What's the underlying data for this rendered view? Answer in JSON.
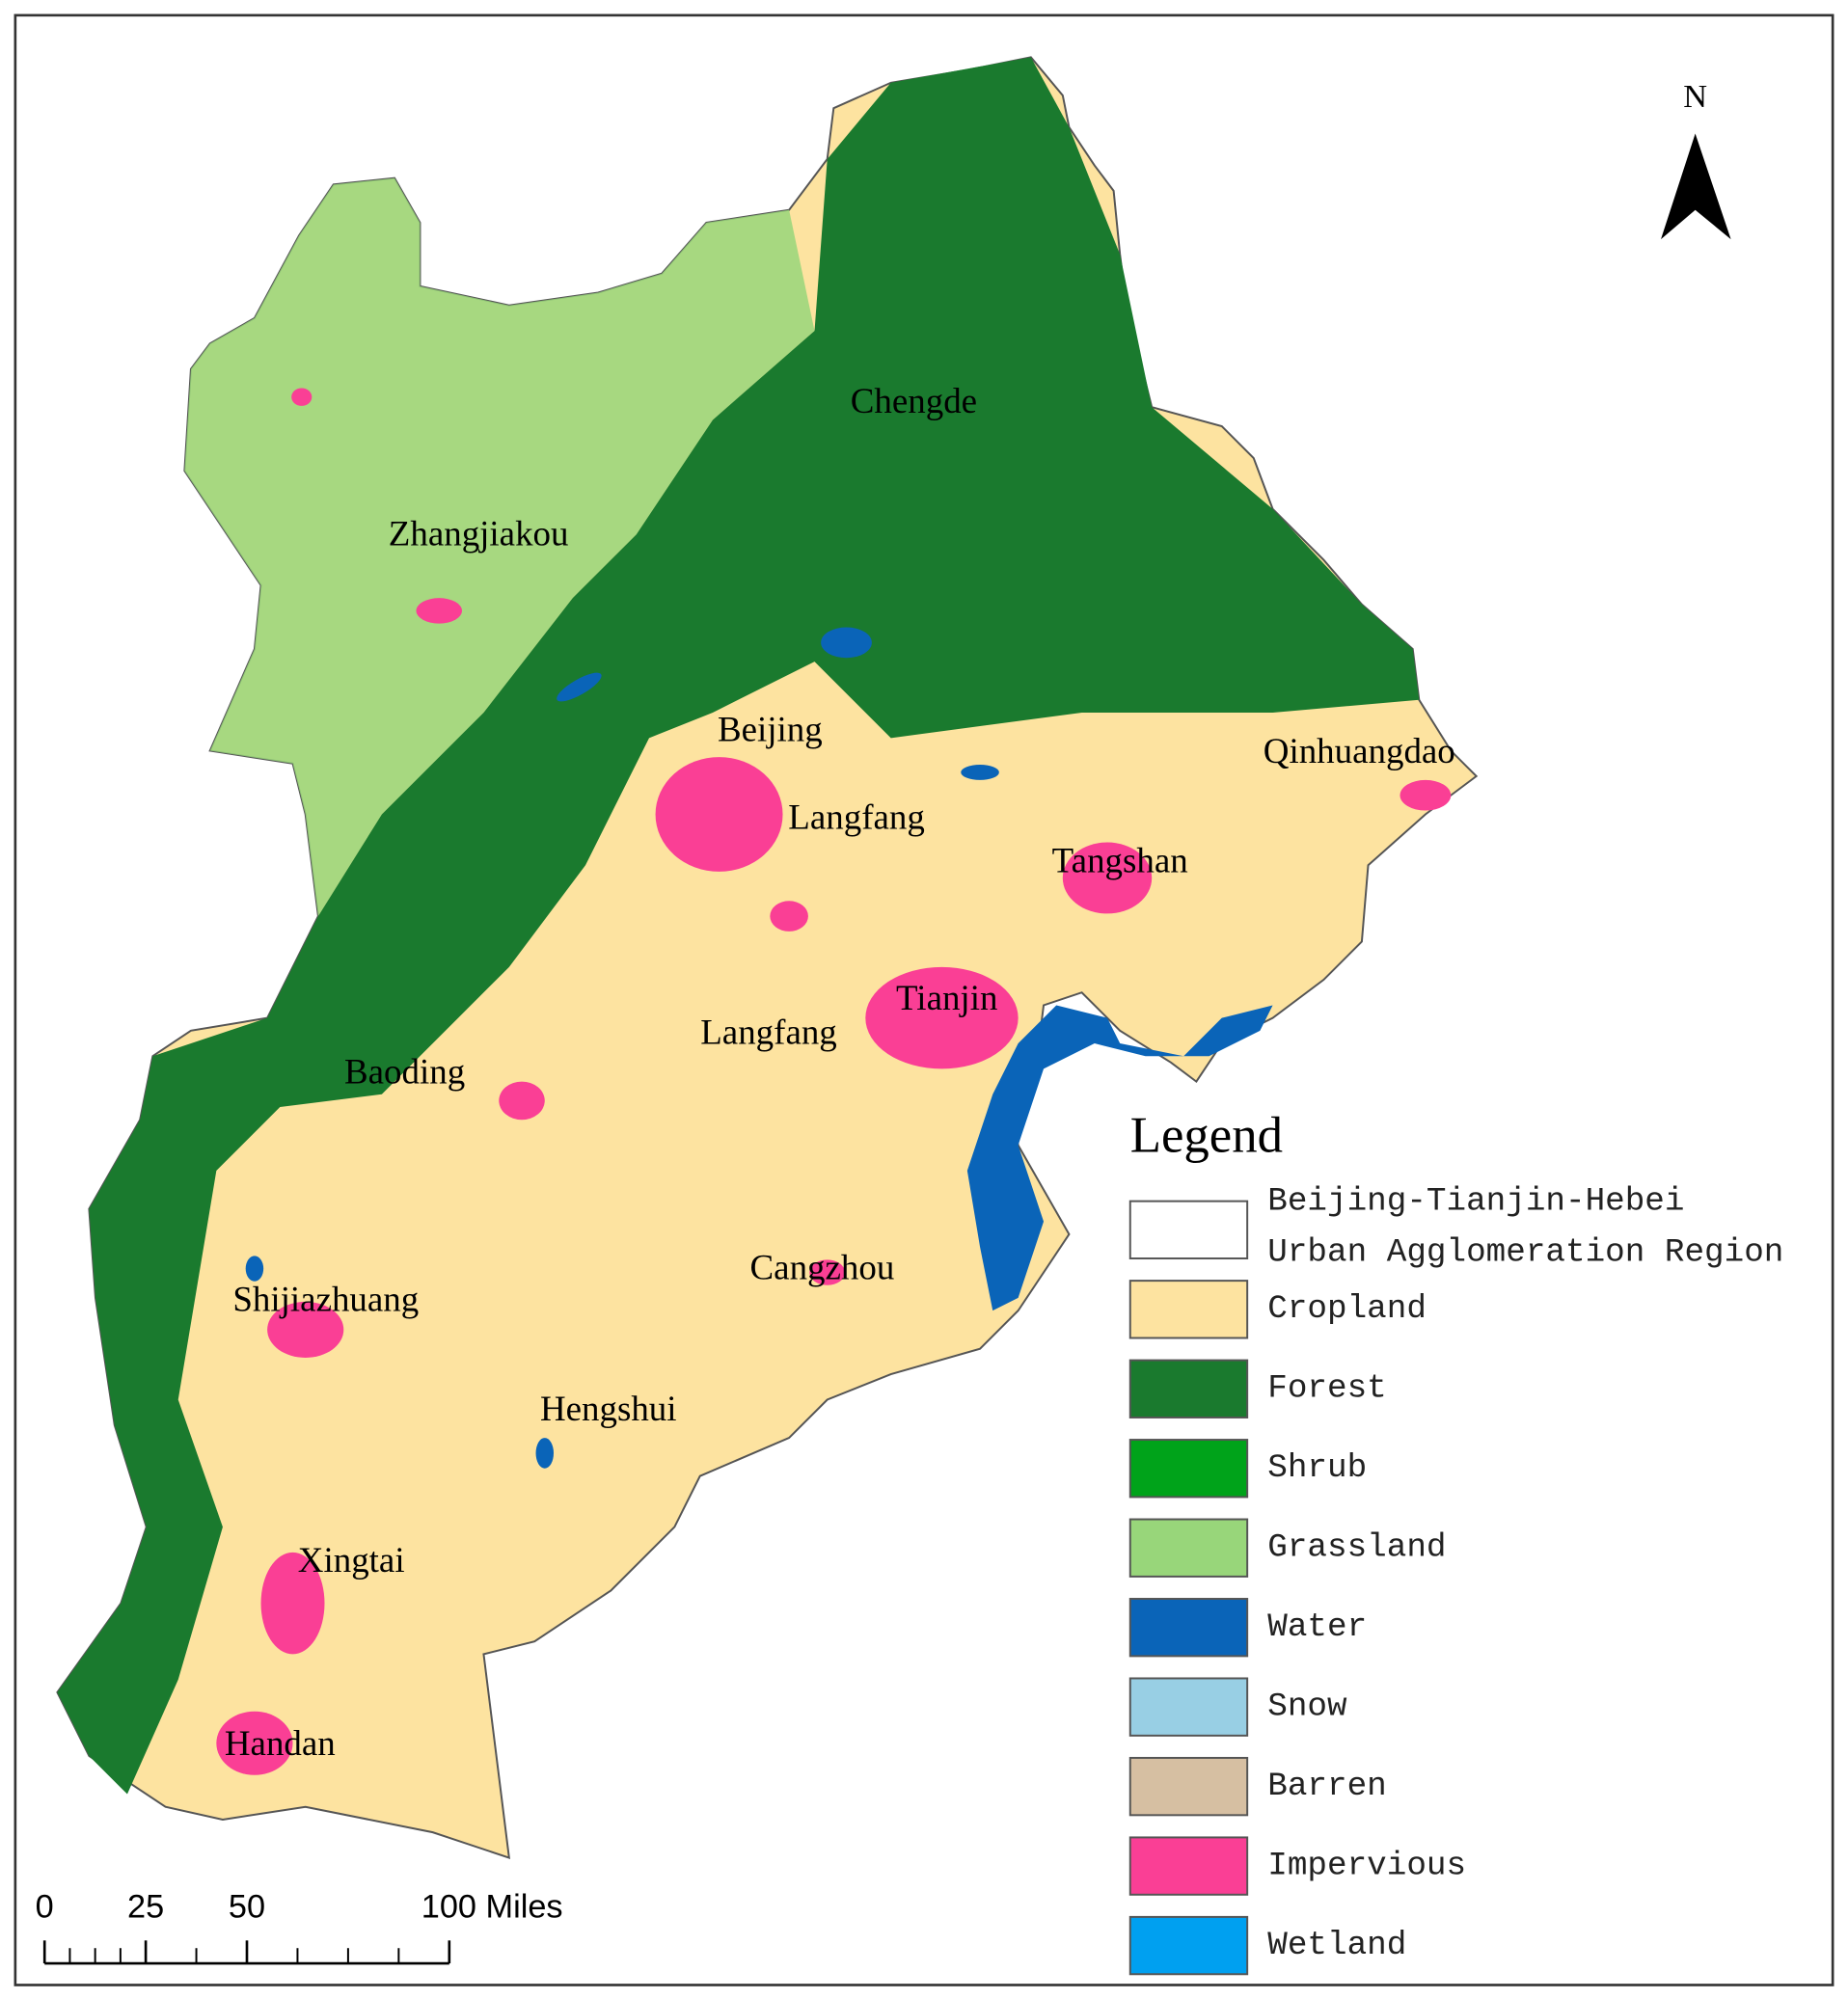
{
  "map": {
    "north": "N",
    "cities": [
      "Chengde",
      "Zhangjiakou",
      "Beijing",
      "Langfang",
      "Qinhuangdao",
      "Tangshan",
      "Tianjin",
      "Langfang",
      "Baoding",
      "Cangzhou",
      "Shijiazhuang",
      "Hengshui",
      "Xingtai",
      "Handan"
    ],
    "legend": {
      "title": "Legend",
      "items": [
        {
          "lines": [
            "Beijing-Tianjin-Hebei",
            "Urban Agglomeration Region"
          ],
          "color": "#ffffff"
        },
        {
          "lines": [
            "Cropland"
          ],
          "color": "#fde3a0"
        },
        {
          "lines": [
            "Forest"
          ],
          "color": "#1a7a2e"
        },
        {
          "lines": [
            "Shrub"
          ],
          "color": "#00a31a"
        },
        {
          "lines": [
            "Grassland"
          ],
          "color": "#98d67a"
        },
        {
          "lines": [
            "Water"
          ],
          "color": "#0a64b8"
        },
        {
          "lines": [
            "Snow"
          ],
          "color": "#98cfe4"
        },
        {
          "lines": [
            "Barren"
          ],
          "color": "#d6bfa2"
        },
        {
          "lines": [
            "Impervious"
          ],
          "color": "#fa3f95"
        },
        {
          "lines": [
            "Wetland"
          ],
          "color": "#00a0f0"
        }
      ]
    },
    "scale": {
      "ticks": [
        0,
        25,
        50,
        {
          "value": 100,
          "label": "100 Miles"
        }
      ]
    }
  }
}
